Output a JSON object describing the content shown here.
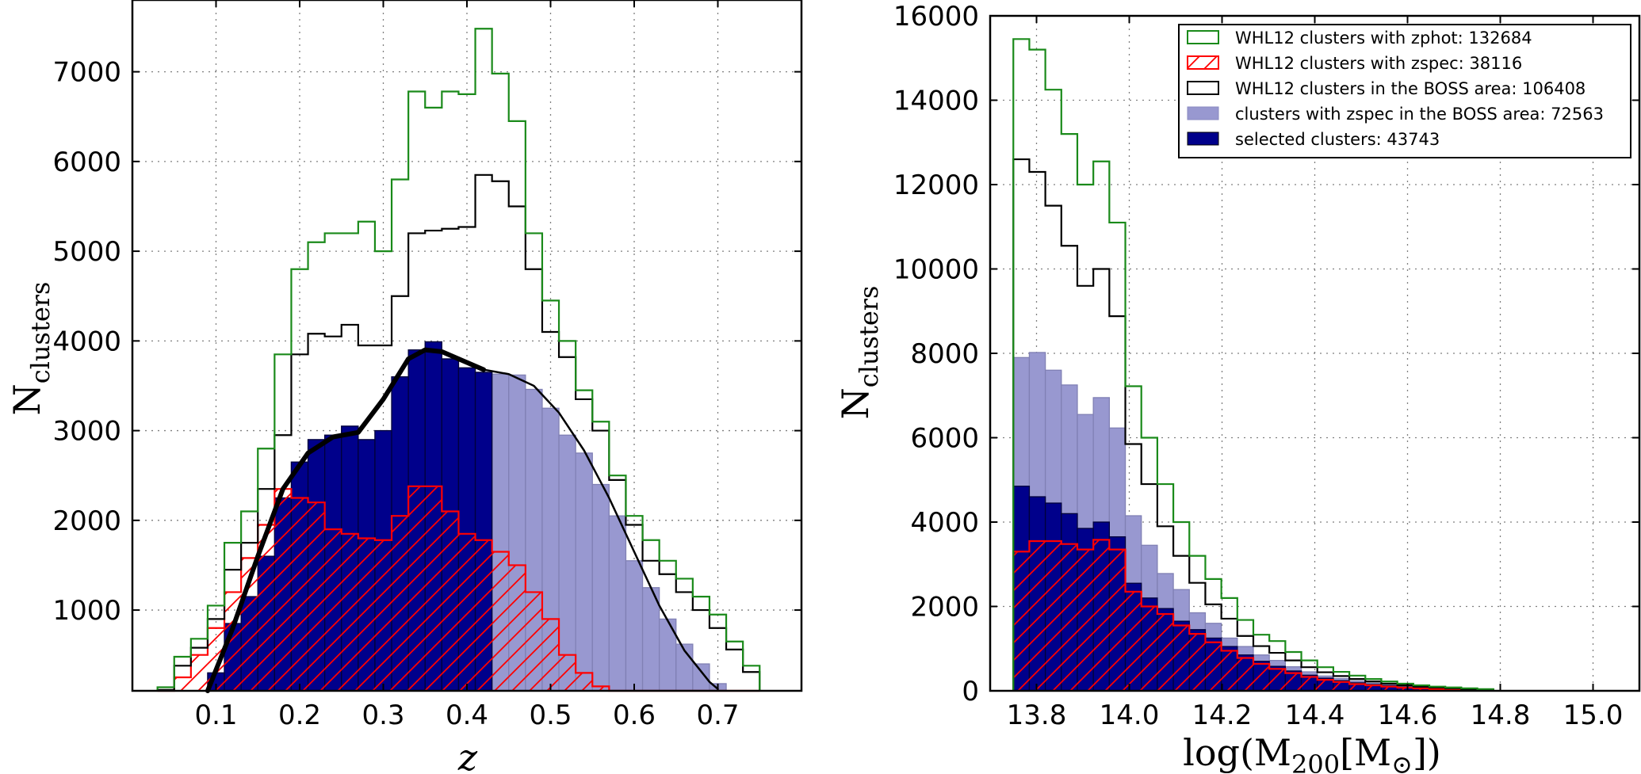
{
  "figure": {
    "left_panel": {
      "xlabel": "z",
      "ylabel_main": "N",
      "ylabel_sub": "clusters"
    },
    "right_panel": {
      "xlabel_pre": "log(M",
      "xlabel_sub": "200",
      "xlabel_mid": "[M",
      "xlabel_sun": "⊙",
      "xlabel_post": "])",
      "ylabel_main": "N",
      "ylabel_sub": "clusters"
    },
    "legend": [
      {
        "label": "WHL12 clusters with zphot: 132684",
        "style": "green-step",
        "color": "#1a8a1a"
      },
      {
        "label": "WHL12 clusters with zspec: 38116",
        "style": "red-hatch",
        "color": "#ff0000"
      },
      {
        "label": "WHL12 clusters in the BOSS area: 106408",
        "style": "black-step",
        "color": "#000000"
      },
      {
        "label": "clusters with zspec in the BOSS area: 72563",
        "style": "lightblue-fill",
        "color": "#9898d0"
      },
      {
        "label": "selected clusters: 43743",
        "style": "navy-fill",
        "color": "#00008b"
      }
    ]
  },
  "chart_data": [
    {
      "type": "bar",
      "title": "",
      "xlabel": "z",
      "ylabel": "N_clusters",
      "xlim": [
        0.0,
        0.8
      ],
      "ylim": [
        100,
        7800
      ],
      "bin_width": 0.02,
      "xticks": [
        0.1,
        0.2,
        0.3,
        0.4,
        0.5,
        0.6,
        0.7
      ],
      "yticks": [
        1000,
        2000,
        3000,
        4000,
        5000,
        6000,
        7000
      ],
      "series": [
        {
          "name": "WHL12 clusters with zphot",
          "kind": "step",
          "x_start": 0.03,
          "values": [
            140,
            480,
            680,
            1050,
            1750,
            2100,
            2800,
            3850,
            4800,
            5100,
            5200,
            5200,
            5330,
            5000,
            5800,
            6780,
            6600,
            6780,
            6750,
            7480,
            6980,
            6450,
            5200,
            4450,
            4000,
            3450,
            3100,
            2500,
            2050,
            1780,
            1550,
            1350,
            1150,
            950,
            650,
            380
          ]
        },
        {
          "name": "WHL12 clusters in the BOSS area",
          "kind": "step",
          "x_start": 0.03,
          "values": [
            110,
            380,
            580,
            900,
            1450,
            1750,
            2350,
            2950,
            3850,
            4080,
            4050,
            4180,
            3950,
            3950,
            4500,
            5200,
            5230,
            5250,
            5270,
            5850,
            5780,
            5500,
            4800,
            4100,
            3820,
            3350,
            3000,
            2450,
            1950,
            1550,
            1400,
            1200,
            1000,
            800,
            560,
            310
          ]
        },
        {
          "name": "WHL12 clusters with zspec",
          "kind": "hatch",
          "x_start": 0.03,
          "values": [
            50,
            250,
            500,
            800,
            1200,
            1580,
            1950,
            2350,
            2250,
            2200,
            1900,
            1850,
            1800,
            1780,
            2050,
            2380,
            2380,
            2100,
            1850,
            1780,
            1650,
            1500,
            1200,
            900,
            500,
            300,
            150,
            80,
            50,
            30,
            20,
            15,
            10,
            5,
            3,
            2
          ]
        },
        {
          "name": "clusters with zspec in the BOSS area",
          "kind": "bar",
          "x_start": 0.03,
          "values": [
            0,
            0,
            0,
            300,
            850,
            1150,
            1600,
            2250,
            2650,
            2900,
            2950,
            3050,
            2900,
            3000,
            3600,
            3900,
            3990,
            3800,
            3700,
            3650,
            3630,
            3620,
            3460,
            3250,
            2950,
            2750,
            2400,
            2050,
            1550,
            1250,
            900,
            620,
            400,
            180,
            0,
            0
          ]
        },
        {
          "name": "selected clusters",
          "kind": "bar",
          "x_start": 0.03,
          "values": [
            0,
            0,
            0,
            300,
            850,
            1150,
            1600,
            2250,
            2650,
            2900,
            2950,
            3050,
            2900,
            3000,
            3600,
            3900,
            3990,
            3800,
            3700,
            3650,
            0,
            0,
            0,
            0,
            0,
            0,
            0,
            0,
            0,
            0,
            0,
            0,
            0,
            0,
            0,
            0
          ]
        },
        {
          "name": "model fit (thick)",
          "kind": "line",
          "x": [
            0.09,
            0.12,
            0.15,
            0.18,
            0.21,
            0.24,
            0.27,
            0.3,
            0.33,
            0.35,
            0.37,
            0.39,
            0.42
          ],
          "values": [
            100,
            800,
            1600,
            2350,
            2750,
            2930,
            2980,
            3350,
            3800,
            3900,
            3880,
            3800,
            3680
          ]
        },
        {
          "name": "model fit (thin)",
          "kind": "line",
          "x": [
            0.42,
            0.45,
            0.48,
            0.51,
            0.54,
            0.57,
            0.6,
            0.63,
            0.66,
            0.69,
            0.7
          ],
          "values": [
            3680,
            3630,
            3500,
            3200,
            2780,
            2250,
            1650,
            1050,
            550,
            200,
            120
          ]
        }
      ]
    },
    {
      "type": "bar",
      "title": "",
      "xlabel": "log(M200[M⊙])",
      "ylabel": "N_clusters",
      "xlim": [
        13.7,
        15.1
      ],
      "ylim": [
        0,
        16000
      ],
      "bin_width": 0.0345,
      "x_start": 13.75,
      "xticks": [
        13.8,
        14.0,
        14.2,
        14.4,
        14.6,
        14.8,
        15.0
      ],
      "yticks": [
        0,
        2000,
        4000,
        6000,
        8000,
        10000,
        12000,
        14000,
        16000
      ],
      "series": [
        {
          "name": "WHL12 clusters with zphot",
          "kind": "step",
          "values": [
            15450,
            15200,
            14250,
            13200,
            12000,
            12550,
            11100,
            7220,
            6000,
            4900,
            4000,
            3200,
            2650,
            2200,
            1680,
            1330,
            1180,
            920,
            720,
            560,
            450,
            360,
            280,
            220,
            170,
            130,
            100,
            80,
            60,
            40
          ]
        },
        {
          "name": "WHL12 clusters in the BOSS area",
          "kind": "step",
          "values": [
            12600,
            12300,
            11500,
            10550,
            9600,
            10000,
            8880,
            5850,
            4900,
            3900,
            3200,
            2560,
            2050,
            1710,
            1300,
            1060,
            900,
            720,
            560,
            440,
            350,
            280,
            220,
            170,
            130,
            100,
            80,
            60,
            40,
            30
          ]
        },
        {
          "name": "clusters with zspec in the BOSS area",
          "kind": "bar",
          "values": [
            7900,
            8020,
            7600,
            7250,
            6550,
            6950,
            6230,
            4150,
            3450,
            2780,
            2400,
            1850,
            1600,
            1250,
            1050,
            850,
            720,
            570,
            450,
            350,
            290,
            230,
            180,
            140,
            110,
            80,
            60,
            45,
            30,
            20
          ]
        },
        {
          "name": "selected clusters",
          "kind": "bar",
          "values": [
            4850,
            4600,
            4450,
            4200,
            3850,
            4000,
            3650,
            2550,
            2200,
            1950,
            1650,
            1450,
            1250,
            1050,
            850,
            700,
            580,
            470,
            370,
            300,
            240,
            190,
            150,
            120,
            90,
            70,
            55,
            40,
            30,
            20
          ]
        },
        {
          "name": "WHL12 clusters with zspec",
          "kind": "hatch",
          "values": [
            3300,
            3550,
            3550,
            3480,
            3350,
            3580,
            3350,
            2350,
            2000,
            1820,
            1550,
            1350,
            1150,
            950,
            780,
            640,
            520,
            420,
            330,
            260,
            210,
            160,
            130,
            100,
            75,
            55,
            40,
            30,
            20,
            12
          ]
        }
      ]
    }
  ]
}
